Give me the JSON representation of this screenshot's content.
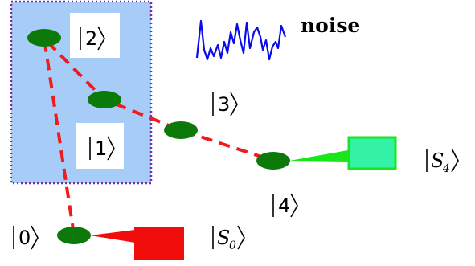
{
  "labels": {
    "ket_0": "0",
    "ket_1": "1",
    "ket_2": "2",
    "ket_3": "3",
    "ket_4": "4",
    "sink_0_letter": "S",
    "sink_0_sub": "0",
    "sink_4_letter": "S",
    "sink_4_sub": "4",
    "noise": "noise"
  },
  "colors": {
    "box_fill": "#a6ccf7",
    "box_border": "#7b2d9a",
    "site": "#0b7a0b",
    "path": "#f21a1a",
    "sink_0": "#f20d0d",
    "sink_4_fill": "#33f2a6",
    "sink_4_border": "#19e619",
    "noise_trace": "#0a0aee"
  },
  "icons": {
    "noise_trace": "noise-trace-icon"
  }
}
